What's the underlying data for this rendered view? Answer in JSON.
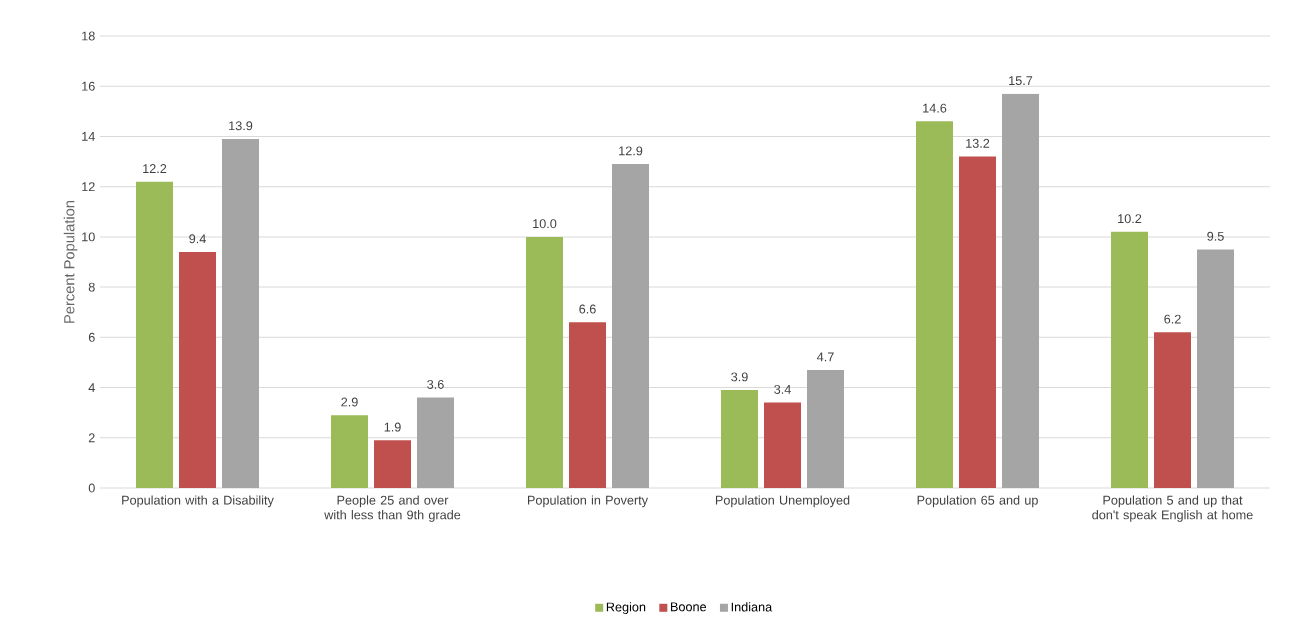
{
  "chart_data": {
    "type": "bar",
    "ylabel": "Percent Population",
    "categories": [
      "Population with a Disability",
      "People 25 and over with less than 9th grade",
      "Population in Poverty",
      "Population Unemployed",
      "Population 65 and up",
      "Population 5 and up that don't speak English at home"
    ],
    "series": [
      {
        "name": "Region",
        "color": "#9bbb59",
        "values": [
          12.2,
          2.9,
          10.0,
          3.9,
          14.6,
          10.2
        ],
        "value_labels": [
          "12.2",
          "2.9",
          "10.0",
          "3.9",
          "14.6",
          "10.2"
        ]
      },
      {
        "name": "Boone",
        "color": "#c0504d",
        "values": [
          9.4,
          1.9,
          6.6,
          3.4,
          13.2,
          6.2
        ],
        "value_labels": [
          "9.4",
          "1.9",
          "6.6",
          "3.4",
          "13.2",
          "6.2"
        ]
      },
      {
        "name": "Indiana",
        "color": "#a5a5a5",
        "values": [
          13.9,
          3.6,
          12.9,
          4.7,
          15.7,
          9.5
        ],
        "value_labels": [
          "13.9",
          "3.6",
          "12.9",
          "4.7",
          "15.7",
          "9.5"
        ]
      }
    ],
    "ylim": [
      0,
      18
    ],
    "yticks": [
      0,
      2,
      4,
      6,
      8,
      10,
      12,
      14,
      16,
      18
    ],
    "grid": "y",
    "legend": "bottom"
  }
}
